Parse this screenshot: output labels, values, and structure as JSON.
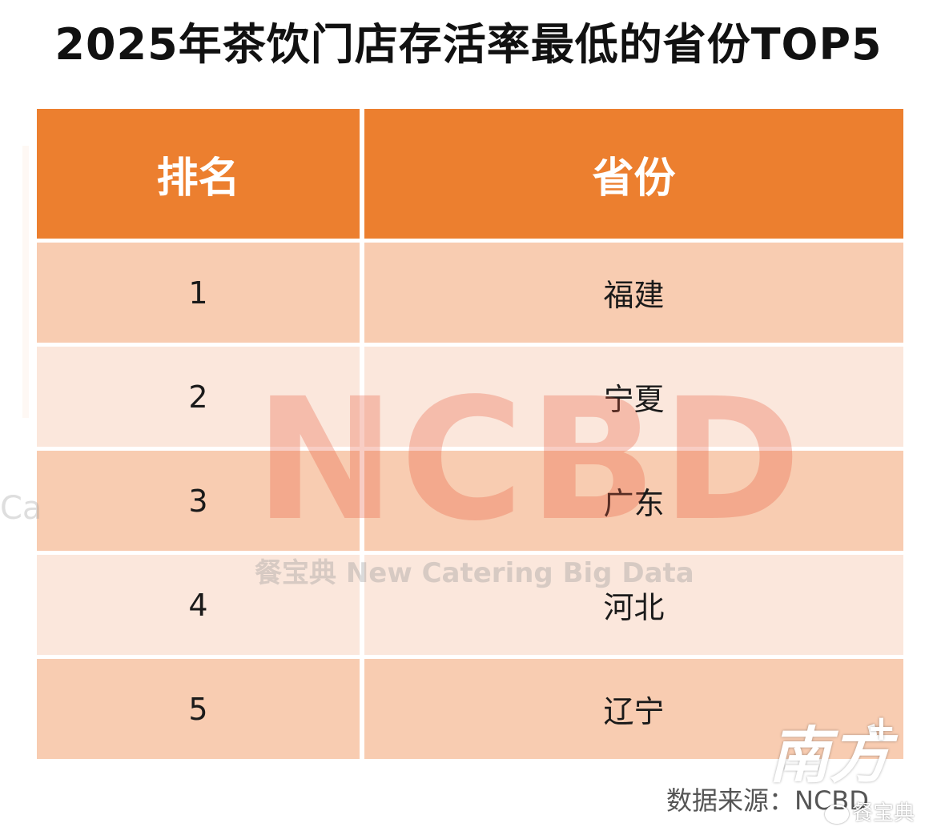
{
  "title": "2025年茶饮门店存活率最低的省份TOP5",
  "table": {
    "headers": [
      "排名",
      "省份"
    ],
    "rows": [
      {
        "rank": "1",
        "province": "福建"
      },
      {
        "rank": "2",
        "province": "宁夏"
      },
      {
        "rank": "3",
        "province": "广东"
      },
      {
        "rank": "4",
        "province": "河北"
      },
      {
        "rank": "5",
        "province": "辽宁"
      }
    ]
  },
  "watermark": {
    "big": "NCBD",
    "small": "餐宝典 New Catering Big Data",
    "left_fragment": "Ca"
  },
  "source": "数据来源：NCBD",
  "brand": {
    "name": "南方",
    "plus": "+",
    "weibo": "餐宝典"
  },
  "colors": {
    "header_bg": "#ec7f2f",
    "row_dark": "#f8ccb1",
    "row_light": "#fbe7dc",
    "watermark": "#e85a3c"
  }
}
